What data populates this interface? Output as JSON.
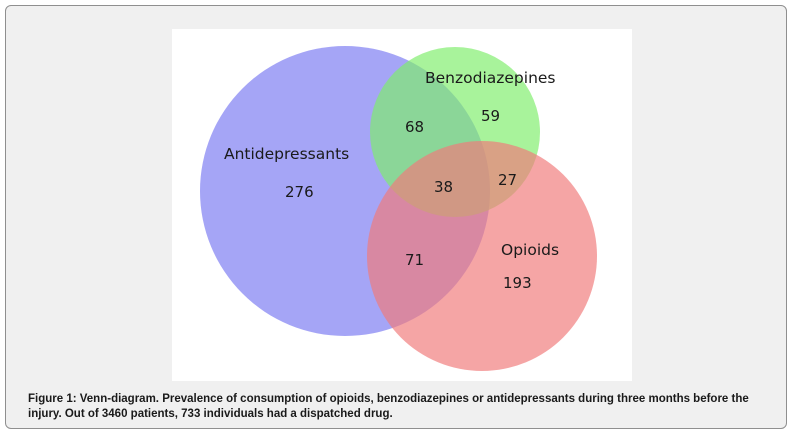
{
  "venn": {
    "sets": {
      "antidepressants": {
        "label": "Antidepressants",
        "color": "#7b7bf2"
      },
      "benzodiazepines": {
        "label": "Benzodiazepines",
        "color": "#7fee6c"
      },
      "opioids": {
        "label": "Opioids",
        "color": "#f07a7a"
      }
    },
    "regions": {
      "antidepressants_only": "276",
      "benzodiazepines_only": "59",
      "opioids_only": "193",
      "antidepressants_benzodiazepines": "68",
      "benzodiazepines_opioids": "27",
      "antidepressants_opioids": "71",
      "all_three": "38"
    }
  },
  "caption": "Figure 1: Venn-diagram. Prevalence of consumption of opioids, benzodiazepines or antidepressants during three months before the injury. Out of 3460 patients, 733 individuals had a dispatched drug."
}
